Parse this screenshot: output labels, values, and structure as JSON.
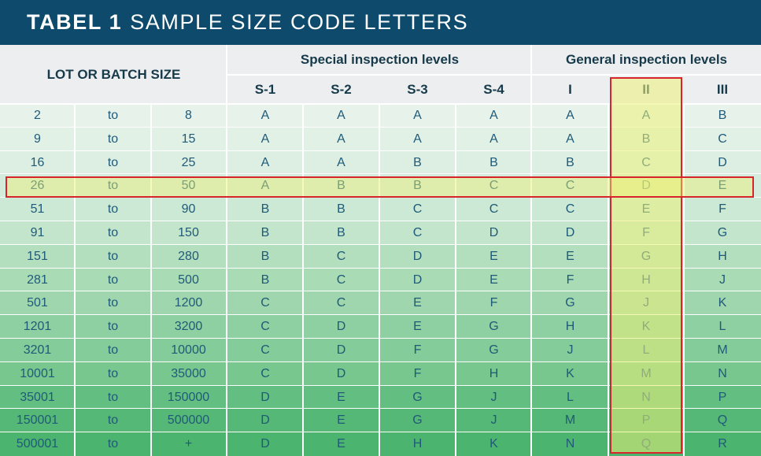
{
  "title": {
    "strong": "TABEL 1",
    "rest": "SAMPLE SIZE CODE LETTERS"
  },
  "headers": {
    "lot": "LOT OR BATCH SIZE",
    "special": "Special inspection levels",
    "general": "General inspection levels",
    "columns": [
      "S-1",
      "S-2",
      "S-3",
      "S-4",
      "I",
      "II",
      "III"
    ]
  },
  "rows": [
    {
      "from": "2",
      "to": "to",
      "until": "8",
      "codes": [
        "A",
        "A",
        "A",
        "A",
        "A",
        "A",
        "B"
      ]
    },
    {
      "from": "9",
      "to": "to",
      "until": "15",
      "codes": [
        "A",
        "A",
        "A",
        "A",
        "A",
        "B",
        "C"
      ]
    },
    {
      "from": "16",
      "to": "to",
      "until": "25",
      "codes": [
        "A",
        "A",
        "B",
        "B",
        "B",
        "C",
        "D"
      ]
    },
    {
      "from": "26",
      "to": "to",
      "until": "50",
      "codes": [
        "A",
        "B",
        "B",
        "C",
        "C",
        "D",
        "E"
      ]
    },
    {
      "from": "51",
      "to": "to",
      "until": "90",
      "codes": [
        "B",
        "B",
        "C",
        "C",
        "C",
        "E",
        "F"
      ]
    },
    {
      "from": "91",
      "to": "to",
      "until": "150",
      "codes": [
        "B",
        "B",
        "C",
        "D",
        "D",
        "F",
        "G"
      ]
    },
    {
      "from": "151",
      "to": "to",
      "until": "280",
      "codes": [
        "B",
        "C",
        "D",
        "E",
        "E",
        "G",
        "H"
      ]
    },
    {
      "from": "281",
      "to": "to",
      "until": "500",
      "codes": [
        "B",
        "C",
        "D",
        "E",
        "F",
        "H",
        "J"
      ]
    },
    {
      "from": "501",
      "to": "to",
      "until": "1200",
      "codes": [
        "C",
        "C",
        "E",
        "F",
        "G",
        "J",
        "K"
      ]
    },
    {
      "from": "1201",
      "to": "to",
      "until": "3200",
      "codes": [
        "C",
        "D",
        "E",
        "G",
        "H",
        "K",
        "L"
      ]
    },
    {
      "from": "3201",
      "to": "to",
      "until": "10000",
      "codes": [
        "C",
        "D",
        "F",
        "G",
        "J",
        "L",
        "M"
      ]
    },
    {
      "from": "10001",
      "to": "to",
      "until": "35000",
      "codes": [
        "C",
        "D",
        "F",
        "H",
        "K",
        "M",
        "N"
      ]
    },
    {
      "from": "35001",
      "to": "to",
      "until": "150000",
      "codes": [
        "D",
        "E",
        "G",
        "J",
        "L",
        "N",
        "P"
      ]
    },
    {
      "from": "150001",
      "to": "to",
      "until": "500000",
      "codes": [
        "D",
        "E",
        "G",
        "J",
        "M",
        "P",
        "Q"
      ]
    },
    {
      "from": "500001",
      "to": "to",
      "until": "+",
      "codes": [
        "D",
        "E",
        "H",
        "K",
        "N",
        "Q",
        "R"
      ]
    }
  ],
  "row_colors": [
    "#e7f3ea",
    "#e2f1e6",
    "#dcefe2",
    "#d4ecdc",
    "#cbe9d4",
    "#c2e5cb",
    "#b3dfbe",
    "#a9dbb5",
    "#9fd6ad",
    "#8ed0a1",
    "#84cc99",
    "#78c78f",
    "#63bf81",
    "#56b877",
    "#4bb46f"
  ],
  "highlight": {
    "row_index": 3,
    "column": "II",
    "color": "#d8252c"
  }
}
